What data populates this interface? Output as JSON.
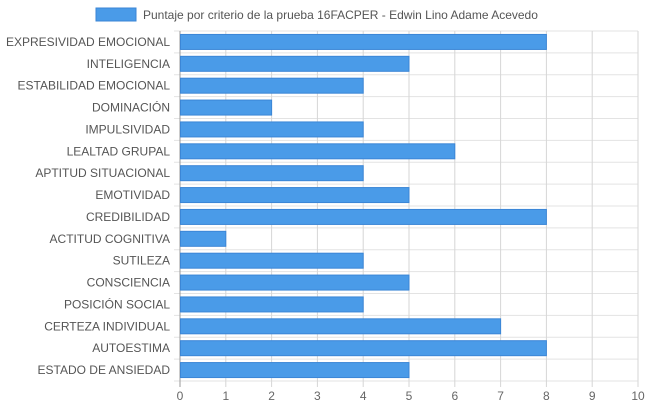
{
  "chart_data": {
    "type": "bar",
    "orientation": "horizontal",
    "categories": [
      "EXPRESIVIDAD EMOCIONAL",
      "INTELIGENCIA",
      "ESTABILIDAD EMOCIONAL",
      "DOMINACIÓN",
      "IMPULSIVIDAD",
      "LEALTAD GRUPAL",
      "APTITUD SITUACIONAL",
      "EMOTIVIDAD",
      "CREDIBILIDAD",
      "ACTITUD COGNITIVA",
      "SUTILEZA",
      "CONSCIENCIA",
      "POSICIÓN SOCIAL",
      "CERTEZA INDIVIDUAL",
      "AUTOESTIMA",
      "ESTADO DE ANSIEDAD"
    ],
    "series": [
      {
        "name": "Puntaje por criterio de la prueba 16FACPER - Edwin Lino Adame Acevedo",
        "values": [
          8,
          5,
          4,
          2,
          4,
          6,
          4,
          5,
          8,
          1,
          4,
          5,
          4,
          7,
          8,
          5
        ],
        "color": "#4a9be8",
        "border_color": "#3b86d6"
      }
    ],
    "xlim": [
      0,
      10
    ],
    "xticks": [
      "0",
      "1",
      "2",
      "3",
      "4",
      "5",
      "6",
      "7",
      "8",
      "9",
      "10"
    ],
    "grid": true,
    "legend_position": "top"
  }
}
